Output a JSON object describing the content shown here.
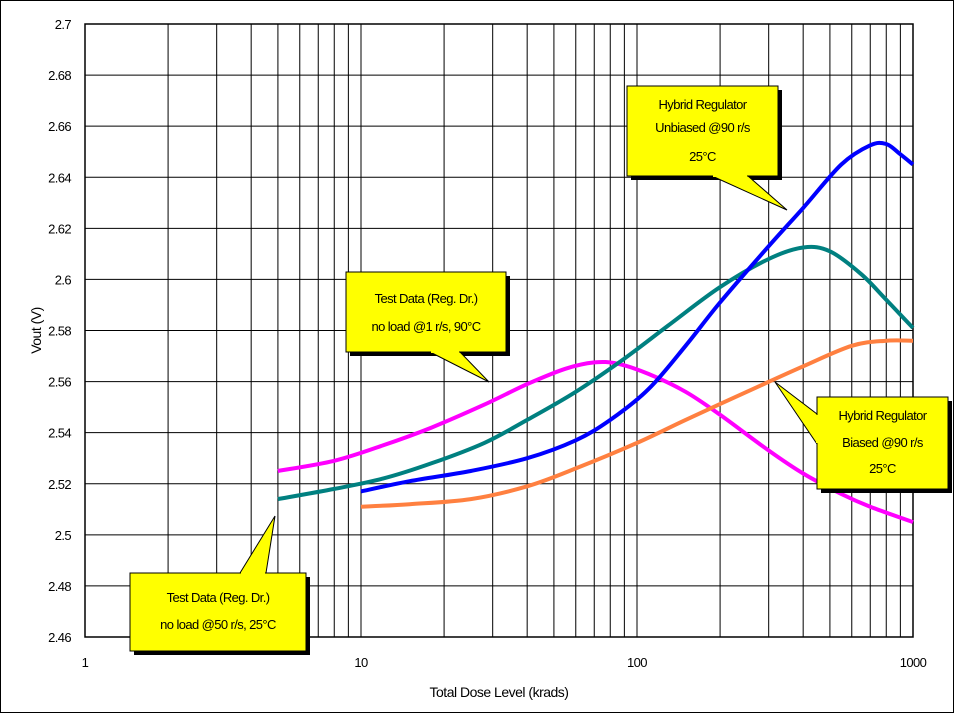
{
  "chart_data": {
    "type": "line",
    "xlabel": "Total Dose Level (krads)",
    "ylabel": "Vout (V)",
    "x_scale": "log",
    "xlim": [
      1,
      1000
    ],
    "ylim": [
      2.46,
      2.7
    ],
    "grid": true,
    "x_ticks": [
      "1",
      "10",
      "100",
      "1000"
    ],
    "y_ticks": [
      "2.46",
      "2.48",
      "2.5",
      "2.52",
      "2.54",
      "2.56",
      "2.58",
      "2.6",
      "2.62",
      "2.64",
      "2.66",
      "2.68",
      "2.7"
    ],
    "series": [
      {
        "color": "#ff00ff",
        "points": [
          [
            5,
            2.525
          ],
          [
            8,
            2.529
          ],
          [
            12,
            2.535
          ],
          [
            18,
            2.542
          ],
          [
            28,
            2.551
          ],
          [
            40,
            2.559
          ],
          [
            55,
            2.565
          ],
          [
            70,
            2.5675
          ],
          [
            85,
            2.567
          ],
          [
            110,
            2.563
          ],
          [
            150,
            2.556
          ],
          [
            200,
            2.547
          ],
          [
            300,
            2.533
          ],
          [
            400,
            2.524
          ],
          [
            550,
            2.516
          ],
          [
            700,
            2.511
          ],
          [
            1000,
            2.505
          ]
        ]
      },
      {
        "color": "#008080",
        "points": [
          [
            5,
            2.514
          ],
          [
            8,
            2.518
          ],
          [
            12,
            2.522
          ],
          [
            18,
            2.528
          ],
          [
            28,
            2.536
          ],
          [
            40,
            2.545
          ],
          [
            60,
            2.556
          ],
          [
            90,
            2.569
          ],
          [
            130,
            2.582
          ],
          [
            200,
            2.597
          ],
          [
            300,
            2.608
          ],
          [
            400,
            2.6125
          ],
          [
            500,
            2.611
          ],
          [
            650,
            2.602
          ],
          [
            800,
            2.592
          ],
          [
            1000,
            2.581
          ]
        ]
      },
      {
        "color": "#0000ff",
        "points": [
          [
            10,
            2.517
          ],
          [
            15,
            2.521
          ],
          [
            25,
            2.525
          ],
          [
            40,
            2.53
          ],
          [
            60,
            2.537
          ],
          [
            80,
            2.545
          ],
          [
            110,
            2.557
          ],
          [
            150,
            2.574
          ],
          [
            200,
            2.591
          ],
          [
            300,
            2.613
          ],
          [
            400,
            2.628
          ],
          [
            550,
            2.645
          ],
          [
            700,
            2.6525
          ],
          [
            800,
            2.653
          ],
          [
            900,
            2.649
          ],
          [
            1000,
            2.645
          ]
        ]
      },
      {
        "color": "#ff8040",
        "points": [
          [
            10,
            2.511
          ],
          [
            15,
            2.512
          ],
          [
            25,
            2.514
          ],
          [
            40,
            2.519
          ],
          [
            60,
            2.526
          ],
          [
            100,
            2.536
          ],
          [
            150,
            2.545
          ],
          [
            250,
            2.556
          ],
          [
            400,
            2.566
          ],
          [
            600,
            2.574
          ],
          [
            800,
            2.576
          ],
          [
            1000,
            2.576
          ]
        ]
      }
    ],
    "annotations": [
      {
        "lines": [
          "Hybrid Regulator",
          "Unbiased @90 r/s",
          "25°C"
        ]
      },
      {
        "lines": [
          "Test Data (Reg. Dr.)",
          "no load @1 r/s, 90°C"
        ]
      },
      {
        "lines": [
          "Hybrid Regulator",
          "Biased @90 r/s",
          "25°C"
        ]
      },
      {
        "lines": [
          "Test Data (Reg. Dr.)",
          "no load @50 r/s, 25°C"
        ]
      }
    ]
  }
}
